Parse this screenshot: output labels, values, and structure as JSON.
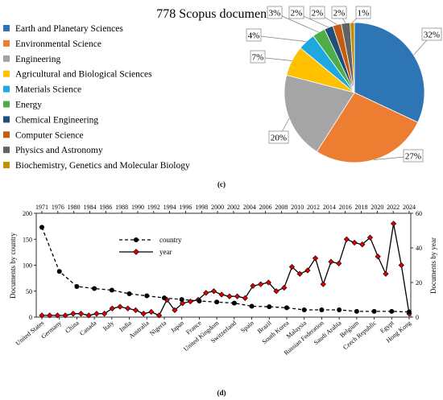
{
  "chart_data": [
    {
      "type": "pie",
      "title": "778 Scopus documents",
      "panel_label": "(c)",
      "legend_position": "left",
      "slices": [
        {
          "label": "Earth and Planetary Sciences",
          "value": 32,
          "display": "32%",
          "color": "#2e75b6"
        },
        {
          "label": "Environmental Science",
          "value": 27,
          "display": "27%",
          "color": "#ed7d31"
        },
        {
          "label": "Engineering",
          "value": 20,
          "display": "20%",
          "color": "#a5a5a5"
        },
        {
          "label": "Agricultural and Biological Sciences",
          "value": 7,
          "display": "7%",
          "color": "#ffc000"
        },
        {
          "label": "Materials Science",
          "value": 4,
          "display": "4%",
          "color": "#1fa8e0"
        },
        {
          "label": "Energy",
          "value": 3,
          "display": "3%",
          "color": "#4cad49"
        },
        {
          "label": "Chemical Engineering",
          "value": 2,
          "display": "2%",
          "color": "#1f4e79"
        },
        {
          "label": "Computer Science",
          "value": 2,
          "display": "2%",
          "color": "#c55a11"
        },
        {
          "label": "Physics and Astronomy",
          "value": 2,
          "display": "2%",
          "color": "#636363"
        },
        {
          "label": "Biochemistry, Genetics and Molecular Biology",
          "value": 1,
          "display": "1%",
          "color": "#bf9000"
        }
      ]
    },
    {
      "type": "line",
      "panel_label": "(d)",
      "grid": false,
      "legend_position": "top-center",
      "countries": [
        "United States",
        "Germany",
        "China",
        "Canada",
        "Italy",
        "India",
        "Australia",
        "Nigeria",
        "Japan",
        "France",
        "United Kingdom",
        "Switzerland",
        "Spain",
        "Brazil",
        "South Korea",
        "Malaysia",
        "Russian Federation",
        "Saudi Arabia",
        "Belgium",
        "Czech Republic",
        "Egypt",
        "Hong Kong"
      ],
      "years": [
        "1971",
        "1976",
        "1980",
        "1984",
        "1986",
        "1988",
        "1990",
        "1992",
        "1994",
        "1996",
        "1998",
        "2000",
        "2002",
        "2004",
        "2006",
        "2008",
        "2010",
        "2012",
        "2014",
        "2016",
        "2018",
        "2020",
        "2022",
        "2024"
      ],
      "ylabel_left": "Documents by country",
      "ylabel_right": "Documents by year",
      "ylim_left": [
        0,
        200
      ],
      "yticks_left": [
        "0",
        "50",
        "100",
        "150",
        "200"
      ],
      "ylim_right": [
        0,
        60
      ],
      "yticks_right": [
        "0",
        "20",
        "40",
        "60"
      ],
      "series": [
        {
          "name": "country",
          "axis": "left",
          "color": "#000000",
          "values": [
            173,
            88,
            59,
            55,
            52,
            45,
            41,
            37,
            34,
            31,
            29,
            27,
            21,
            20,
            18,
            14,
            14,
            14,
            11,
            11,
            11,
            10
          ]
        },
        {
          "name": "year",
          "axis": "right",
          "color": "#e00000",
          "values": [
            1,
            1,
            1,
            1,
            2,
            2,
            1,
            2,
            2,
            5,
            6,
            5,
            4,
            2,
            3,
            1,
            10,
            4,
            8,
            9,
            10,
            14,
            15,
            13,
            12,
            12,
            11,
            18,
            19,
            20,
            15,
            17,
            29,
            25,
            27,
            34,
            19,
            32,
            31,
            45,
            43,
            42,
            46,
            35,
            25,
            54,
            30,
            2
          ]
        }
      ]
    }
  ]
}
